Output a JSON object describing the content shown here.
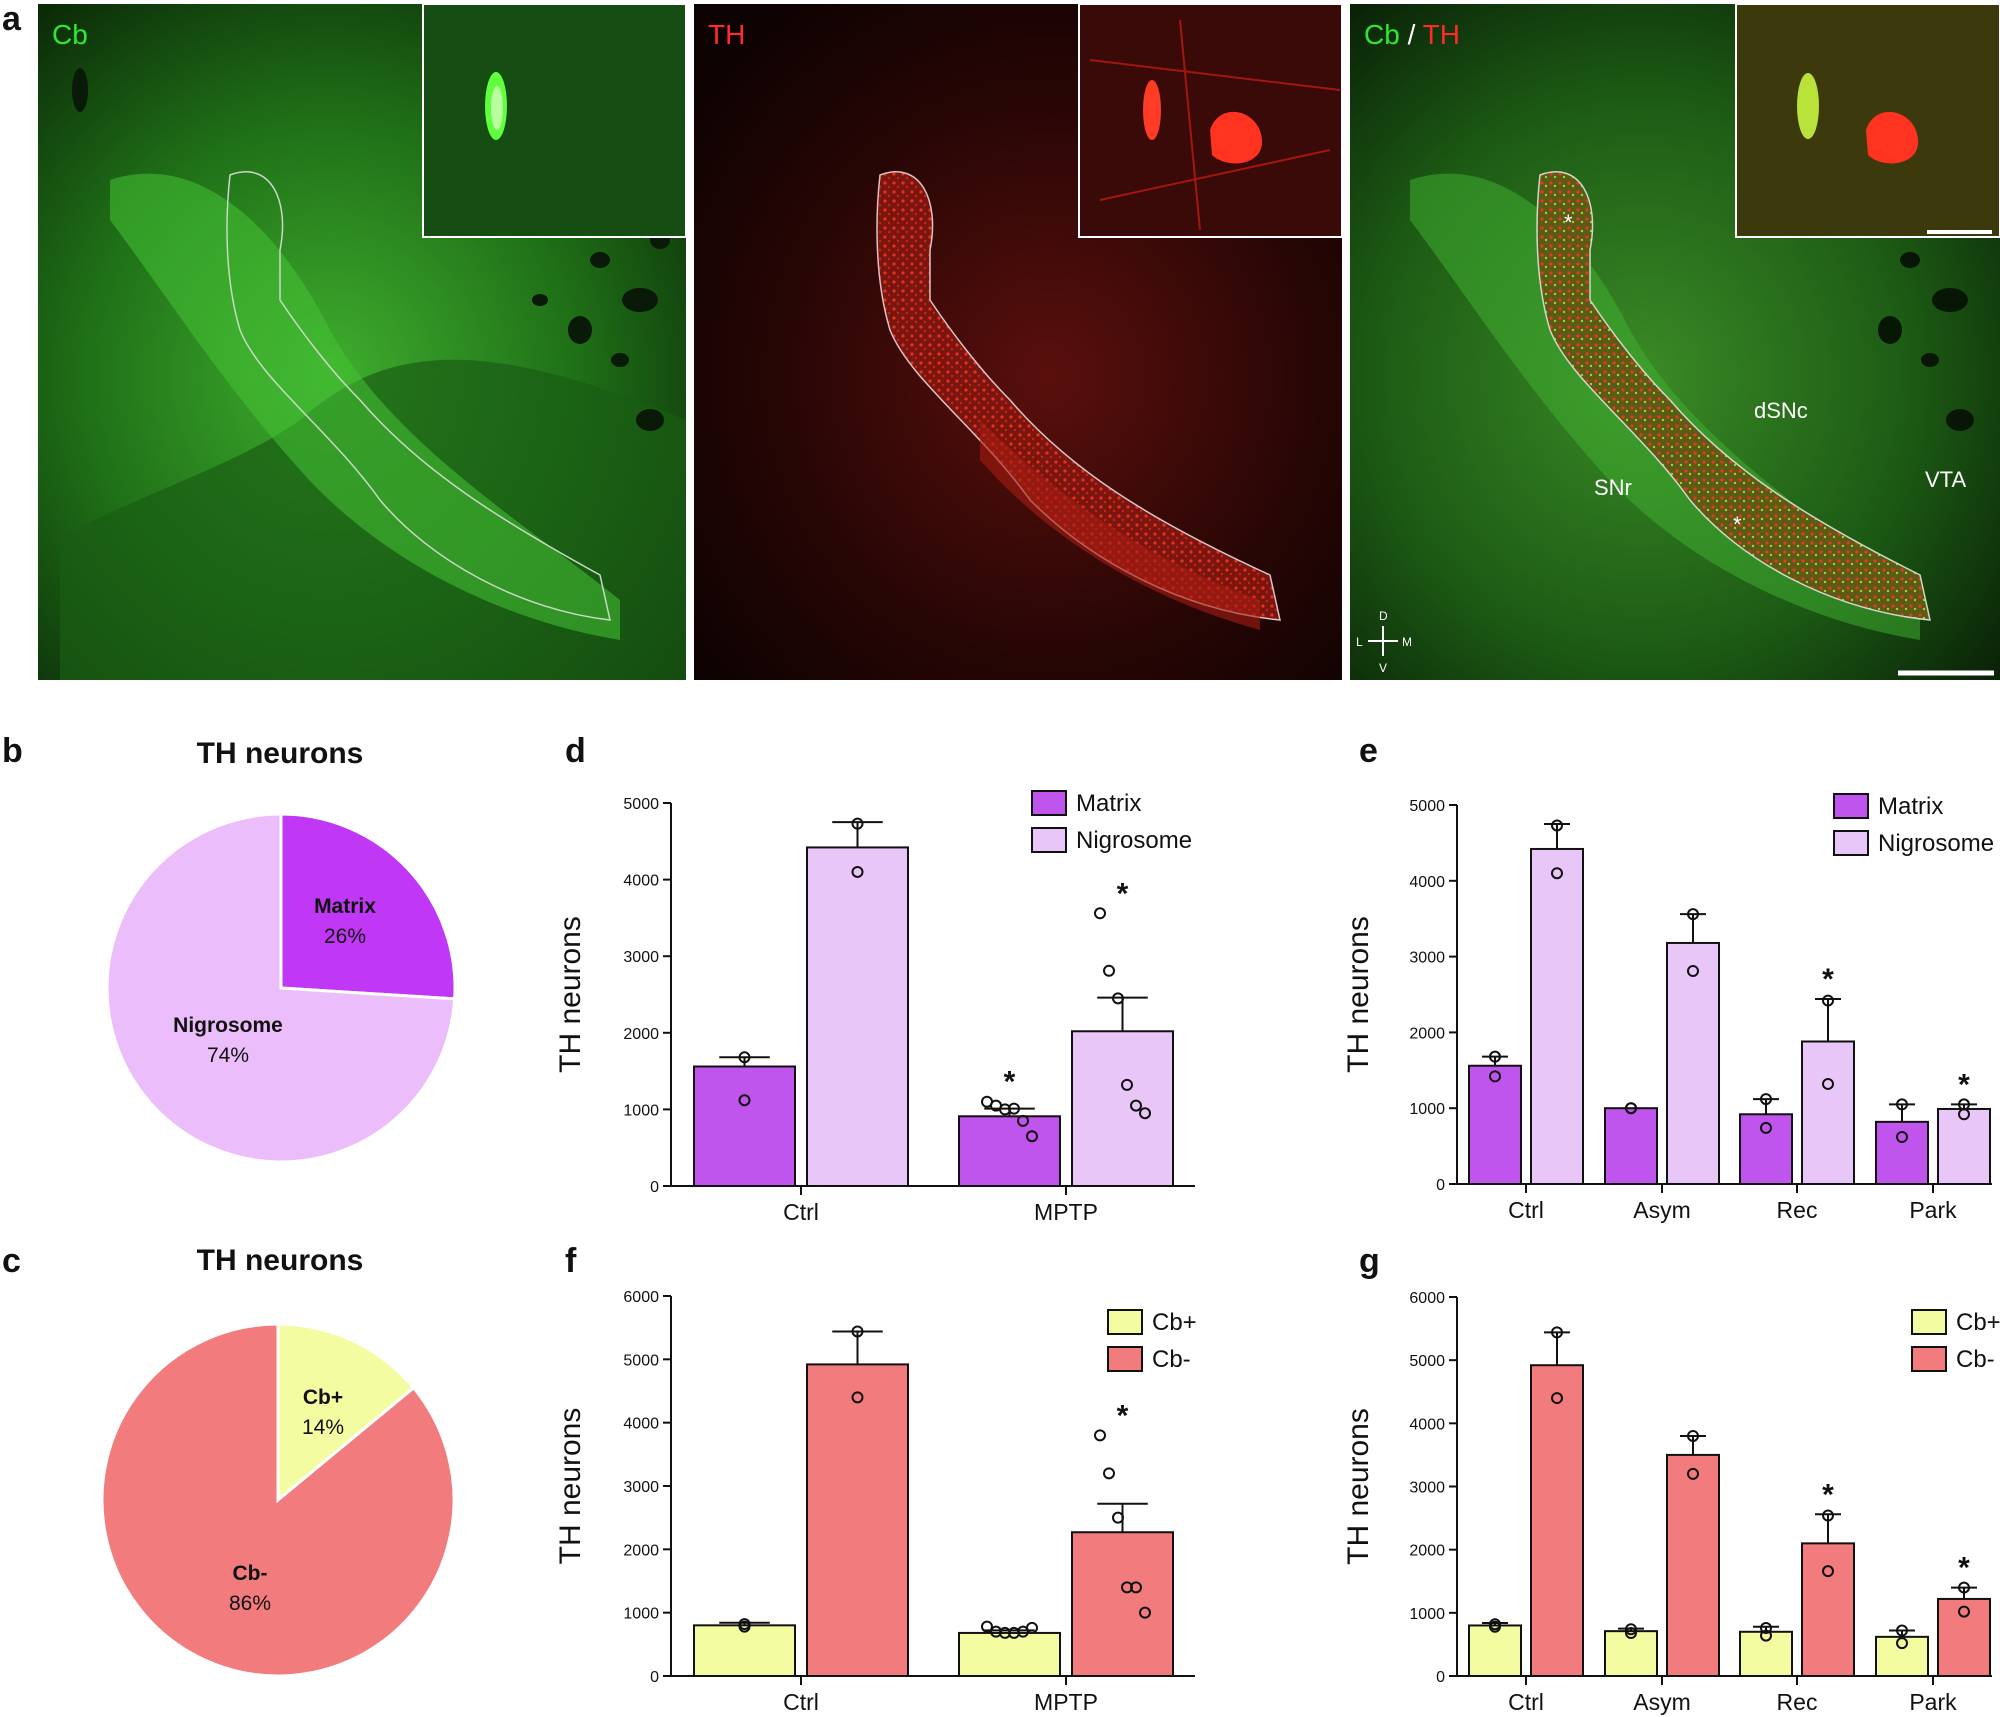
{
  "panels": {
    "a": {
      "letter": "a",
      "images": [
        {
          "label": "Cb",
          "color": "#33e633"
        },
        {
          "label": "TH",
          "color": "#ff2a2a"
        },
        {
          "label_parts": [
            "Cb",
            " / ",
            "TH"
          ],
          "colors": [
            "#33e633",
            "#ffffff",
            "#ff2a2a"
          ]
        }
      ],
      "regions": [
        "dSNc",
        "SNr",
        "VTA"
      ],
      "asterisk": "*",
      "orientation": {
        "d": "D",
        "v": "V",
        "l": "L",
        "m": "M"
      }
    },
    "b": {
      "letter": "b"
    },
    "c": {
      "letter": "c"
    },
    "d": {
      "letter": "d"
    },
    "e": {
      "letter": "e"
    },
    "f": {
      "letter": "f"
    },
    "g": {
      "letter": "g"
    }
  },
  "colors": {
    "matrix": "#bf55ec",
    "nigrosome": "#e9c6f8",
    "cb_pos": "#f3fca0",
    "cb_neg": "#f27b7e",
    "pie_matrix": "#c037f5",
    "pie_nigrosome": "#ebbdfa"
  },
  "chart_data": [
    {
      "id": "b",
      "type": "pie",
      "title": "TH neurons",
      "slices": [
        {
          "label": "Matrix",
          "value": 26,
          "pct_label": "26%"
        },
        {
          "label": "Nigrosome",
          "value": 74,
          "pct_label": "74%"
        }
      ]
    },
    {
      "id": "c",
      "type": "pie",
      "title": "TH neurons",
      "slices": [
        {
          "label": "Cb+",
          "value": 14,
          "pct_label": "14%"
        },
        {
          "label": "Cb-",
          "value": 86,
          "pct_label": "86%"
        }
      ]
    },
    {
      "id": "d",
      "type": "bar",
      "ylabel": "TH neurons",
      "ylim": [
        0,
        5000
      ],
      "yticks": [
        0,
        1000,
        2000,
        3000,
        4000,
        5000
      ],
      "categories": [
        "Ctrl",
        "MPTP"
      ],
      "legend": "top-right",
      "series": [
        {
          "name": "Matrix",
          "values": [
            1560,
            910
          ],
          "errors": [
            120,
            100
          ],
          "points": [
            [
              1680,
              1120
            ],
            [
              1100,
              1050,
              1000,
              1010,
              850,
              650
            ]
          ],
          "stars": [
            false,
            true
          ]
        },
        {
          "name": "Nigrosome",
          "values": [
            4420,
            2020
          ],
          "errors": [
            330,
            440
          ],
          "points": [
            [
              4730,
              4100
            ],
            [
              3560,
              2810,
              2450,
              1320,
              1050,
              950
            ]
          ],
          "stars": [
            false,
            true
          ]
        }
      ]
    },
    {
      "id": "e",
      "type": "bar",
      "ylabel": "TH neurons",
      "ylim": [
        0,
        5000
      ],
      "yticks": [
        0,
        1000,
        2000,
        3000,
        4000,
        5000
      ],
      "categories": [
        "Ctrl",
        "Asym",
        "Rec",
        "Park"
      ],
      "legend": "top-right",
      "series": [
        {
          "name": "Matrix",
          "values": [
            1560,
            1000,
            920,
            820
          ],
          "errors": [
            120,
            0,
            200,
            230
          ],
          "points": [
            [
              1680,
              1420
            ],
            [
              1000,
              1000
            ],
            [
              1120,
              740
            ],
            [
              1050,
              620
            ]
          ],
          "stars": [
            false,
            false,
            false,
            false
          ]
        },
        {
          "name": "Nigrosome",
          "values": [
            4420,
            3180,
            1880,
            990
          ],
          "errors": [
            330,
            380,
            560,
            60
          ],
          "points": [
            [
              4730,
              4100
            ],
            [
              3560,
              2810
            ],
            [
              2420,
              1320
            ],
            [
              1050,
              920
            ]
          ],
          "stars": [
            false,
            false,
            true,
            true
          ]
        }
      ]
    },
    {
      "id": "f",
      "type": "bar",
      "ylabel": "TH neurons",
      "ylim": [
        0,
        6000
      ],
      "yticks": [
        0,
        1000,
        2000,
        3000,
        4000,
        5000,
        6000
      ],
      "categories": [
        "Ctrl",
        "MPTP"
      ],
      "legend": "top-right",
      "series": [
        {
          "name": "Cb+",
          "values": [
            800,
            680
          ],
          "errors": [
            40,
            40
          ],
          "points": [
            [
              780,
              820
            ],
            [
              780,
              700,
              680,
              680,
              700,
              760
            ]
          ],
          "stars": [
            false,
            false
          ]
        },
        {
          "name": "Cb-",
          "values": [
            4920,
            2270
          ],
          "errors": [
            520,
            450
          ],
          "points": [
            [
              5440,
              4400
            ],
            [
              3800,
              3200,
              2500,
              1400,
              1400,
              1000
            ]
          ],
          "stars": [
            false,
            true
          ]
        }
      ]
    },
    {
      "id": "g",
      "type": "bar",
      "ylabel": "TH neurons",
      "ylim": [
        0,
        6000
      ],
      "yticks": [
        0,
        1000,
        2000,
        3000,
        4000,
        5000,
        6000
      ],
      "categories": [
        "Ctrl",
        "Asym",
        "Rec",
        "Park"
      ],
      "legend": "top-right",
      "series": [
        {
          "name": "Cb+",
          "values": [
            800,
            710,
            700,
            620
          ],
          "errors": [
            40,
            40,
            80,
            100
          ],
          "points": [
            [
              780,
              820
            ],
            [
              680,
              740
            ],
            [
              640,
              760
            ],
            [
              720,
              520
            ]
          ],
          "stars": [
            false,
            false,
            false,
            false
          ]
        },
        {
          "name": "Cb-",
          "values": [
            4920,
            3500,
            2100,
            1220
          ],
          "errors": [
            520,
            300,
            460,
            180
          ],
          "points": [
            [
              5440,
              4400
            ],
            [
              3800,
              3200
            ],
            [
              2540,
              1660
            ],
            [
              1400,
              1020
            ]
          ],
          "stars": [
            false,
            false,
            true,
            true
          ]
        }
      ]
    }
  ]
}
